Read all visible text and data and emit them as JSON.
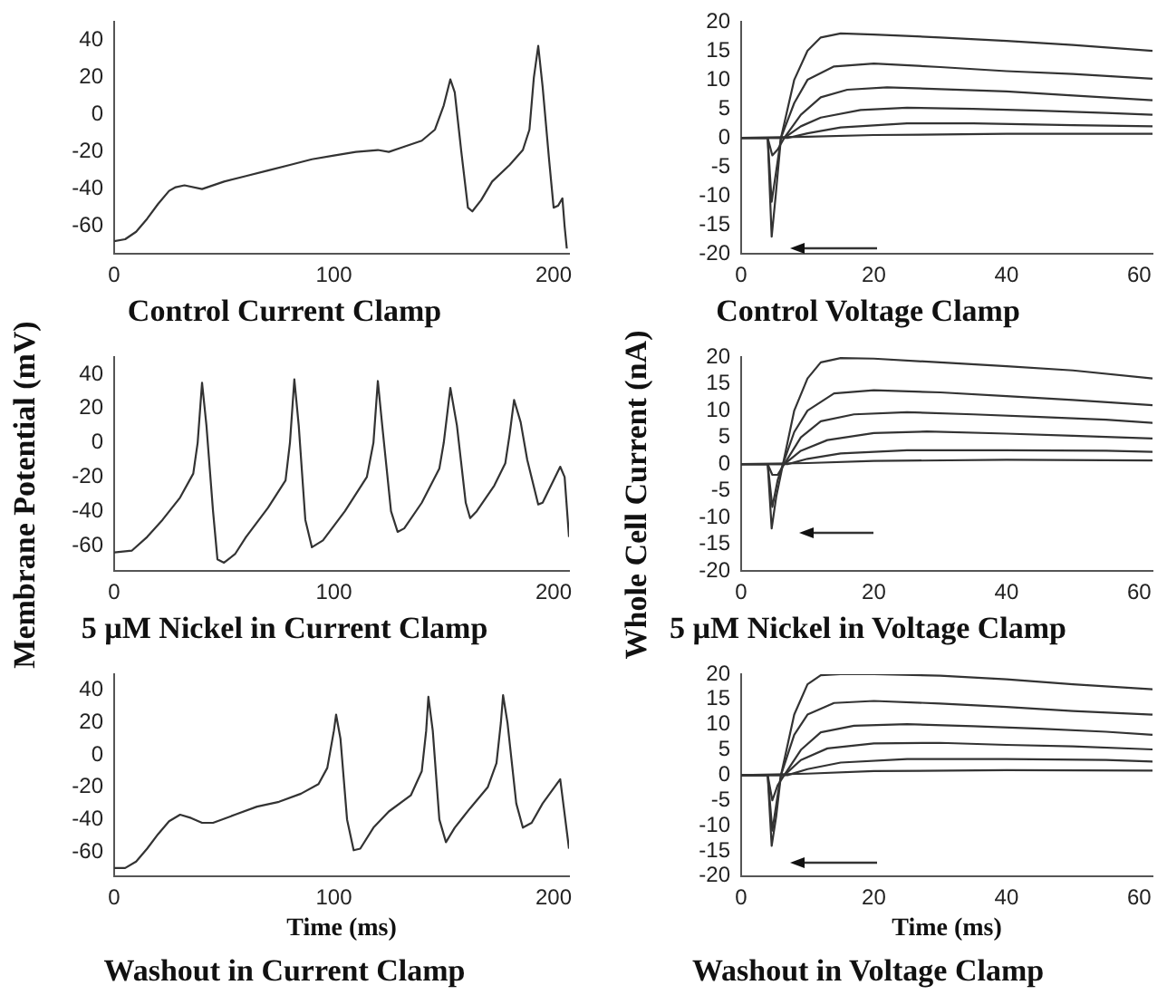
{
  "chart_data": [
    {
      "type": "line",
      "title": "Control Current Clamp",
      "xlim": [
        0,
        207
      ],
      "xticks": [
        0,
        100,
        200
      ],
      "ylim": [
        -75,
        50
      ],
      "yticks": [
        -60,
        -40,
        -20,
        0,
        20,
        40
      ],
      "series": [
        {
          "color": "#333333",
          "x": [
            0,
            5,
            10,
            15,
            20,
            25,
            28,
            32,
            40,
            50,
            60,
            70,
            80,
            90,
            100,
            110,
            120,
            125,
            130,
            140,
            146,
            150,
            153,
            155,
            158,
            161,
            163,
            167,
            172,
            180,
            186,
            189,
            191,
            193,
            195,
            198,
            200,
            202,
            204,
            205,
            206
          ],
          "values": [
            -68,
            -67,
            -63,
            -56,
            -48,
            -41,
            -39,
            -38,
            -40,
            -36,
            -33,
            -30,
            -27,
            -24,
            -22,
            -20,
            -19,
            -20,
            -18,
            -14,
            -8,
            5,
            19,
            12,
            -20,
            -50,
            -52,
            -46,
            -36,
            -27,
            -19,
            -8,
            20,
            37,
            15,
            -25,
            -50,
            -49,
            -45,
            -60,
            -72
          ]
        }
      ]
    },
    {
      "type": "line",
      "title": "Control Voltage Clamp",
      "xlim": [
        0,
        62
      ],
      "xticks": [
        0,
        20,
        40,
        60
      ],
      "ylim": [
        -20,
        20
      ],
      "yticks": [
        -20,
        -15,
        -10,
        -5,
        0,
        5,
        10,
        15,
        20
      ],
      "series": [
        {
          "color": "#333333",
          "x": [
            0,
            4,
            4.6,
            5.2,
            6,
            8,
            10,
            12,
            15,
            20,
            30,
            40,
            50,
            62
          ],
          "values": [
            0,
            0,
            -17,
            -10,
            0,
            10,
            15,
            17.3,
            18,
            17.8,
            17.3,
            16.7,
            16,
            15
          ]
        },
        {
          "color": "#333333",
          "x": [
            0,
            4,
            4.6,
            5.5,
            6,
            8,
            10,
            14,
            20,
            30,
            40,
            50,
            62
          ],
          "values": [
            0,
            0,
            -11,
            -4,
            0,
            6,
            10,
            12.3,
            12.8,
            12.2,
            11.5,
            11,
            10.2
          ]
        },
        {
          "color": "#333333",
          "x": [
            0,
            4,
            4.7,
            5.5,
            6.5,
            9,
            12,
            16,
            22,
            30,
            40,
            50,
            62
          ],
          "values": [
            0,
            0,
            -3,
            -2,
            0,
            4,
            7,
            8.3,
            8.7,
            8.4,
            8,
            7.3,
            6.5
          ]
        },
        {
          "color": "#333333",
          "x": [
            0,
            4,
            6.5,
            9,
            12,
            18,
            25,
            35,
            45,
            55,
            62
          ],
          "values": [
            0,
            0,
            0,
            2,
            3.5,
            4.8,
            5.2,
            5,
            4.7,
            4.3,
            4
          ]
        },
        {
          "color": "#333333",
          "x": [
            0,
            7,
            10,
            15,
            25,
            35,
            50,
            62
          ],
          "values": [
            0,
            0,
            0.8,
            1.8,
            2.5,
            2.5,
            2.2,
            2
          ]
        },
        {
          "color": "#333333",
          "x": [
            0,
            10,
            20,
            40,
            62
          ],
          "values": [
            0,
            0.2,
            0.5,
            0.7,
            0.7
          ]
        }
      ]
    },
    {
      "type": "line",
      "title": "5 µM Nickel in Current Clamp",
      "ylabel": "Membrane Potential (mV)",
      "xlim": [
        0,
        207
      ],
      "xticks": [
        0,
        100,
        200
      ],
      "ylim": [
        -75,
        50
      ],
      "yticks": [
        -60,
        -40,
        -20,
        0,
        20,
        40
      ],
      "series": [
        {
          "color": "#333333",
          "x": [
            0,
            8,
            15,
            22,
            30,
            36,
            38,
            40,
            42,
            45,
            47,
            50,
            55,
            60,
            70,
            78,
            80,
            82,
            84,
            87,
            90,
            95,
            105,
            115,
            118,
            120,
            122,
            126,
            129,
            132,
            140,
            148,
            150,
            153,
            156,
            160,
            162,
            165,
            173,
            178,
            180,
            182,
            185,
            188,
            193,
            195,
            203,
            205,
            207
          ],
          "values": [
            -64,
            -63,
            -55,
            -45,
            -32,
            -18,
            0,
            35,
            10,
            -40,
            -68,
            -70,
            -65,
            -55,
            -38,
            -22,
            0,
            37,
            10,
            -45,
            -61,
            -57,
            -40,
            -20,
            0,
            36,
            10,
            -40,
            -52,
            -50,
            -35,
            -15,
            0,
            32,
            10,
            -35,
            -44,
            -40,
            -25,
            -12,
            5,
            25,
            12,
            -10,
            -36,
            -35,
            -14,
            -20,
            -55
          ]
        }
      ]
    },
    {
      "type": "line",
      "title": "5 µM Nickel in Voltage Clamp",
      "ylabel": "Whole Cell Current (nA)",
      "xlim": [
        0,
        62
      ],
      "xticks": [
        0,
        20,
        40,
        60
      ],
      "ylim": [
        -20,
        20
      ],
      "yticks": [
        -20,
        -15,
        -10,
        -5,
        0,
        5,
        10,
        15,
        20
      ],
      "series": [
        {
          "color": "#333333",
          "x": [
            0,
            4,
            4.6,
            5.3,
            6.3,
            8,
            10,
            12,
            15,
            20,
            30,
            40,
            50,
            62
          ],
          "values": [
            0,
            0,
            -12,
            -6,
            0,
            10,
            16,
            19,
            19.8,
            19.7,
            19,
            18.3,
            17.5,
            16
          ]
        },
        {
          "color": "#333333",
          "x": [
            0,
            4,
            4.7,
            5.5,
            6.3,
            8,
            10,
            14,
            20,
            30,
            40,
            50,
            62
          ],
          "values": [
            0,
            0,
            -8,
            -3,
            0,
            6,
            10,
            13.2,
            13.8,
            13.4,
            12.7,
            12,
            11
          ]
        },
        {
          "color": "#333333",
          "x": [
            0,
            4,
            4.7,
            5.5,
            6.5,
            9,
            12,
            17,
            25,
            35,
            45,
            55,
            62
          ],
          "values": [
            0,
            0,
            -2,
            -2,
            0,
            5,
            8,
            9.3,
            9.7,
            9.3,
            8.8,
            8.3,
            7.7
          ]
        },
        {
          "color": "#333333",
          "x": [
            0,
            6.5,
            9,
            13,
            20,
            28,
            40,
            50,
            62
          ],
          "values": [
            0,
            0,
            2.5,
            4.5,
            5.8,
            6.1,
            5.7,
            5.3,
            4.8
          ]
        },
        {
          "color": "#333333",
          "x": [
            0,
            7,
            10,
            15,
            25,
            40,
            55,
            62
          ],
          "values": [
            0,
            0,
            1,
            2,
            2.6,
            2.6,
            2.5,
            2.3
          ]
        },
        {
          "color": "#333333",
          "x": [
            0,
            10,
            20,
            40,
            62
          ],
          "values": [
            0,
            0.2,
            0.6,
            0.8,
            0.7
          ]
        }
      ]
    },
    {
      "type": "line",
      "title": "Washout in Current Clamp",
      "xlabel": "Time (ms)",
      "xlim": [
        0,
        207
      ],
      "xticks": [
        0,
        100,
        200
      ],
      "ylim": [
        -75,
        50
      ],
      "yticks": [
        -60,
        -40,
        -20,
        0,
        20,
        40
      ],
      "series": [
        {
          "color": "#333333",
          "x": [
            0,
            5,
            10,
            15,
            20,
            25,
            30,
            35,
            40,
            45,
            55,
            65,
            75,
            85,
            93,
            97,
            100,
            101,
            103,
            106,
            109,
            112,
            118,
            125,
            135,
            140,
            142,
            143,
            145,
            148,
            151,
            155,
            162,
            170,
            174,
            176,
            177,
            179,
            183,
            186,
            190,
            195,
            203,
            207
          ],
          "values": [
            -70,
            -70,
            -66,
            -58,
            -49,
            -41,
            -37,
            -39,
            -42,
            -42,
            -37,
            -32,
            -29,
            -24,
            -18,
            -8,
            15,
            25,
            10,
            -40,
            -59,
            -58,
            -45,
            -35,
            -25,
            -10,
            15,
            36,
            15,
            -40,
            -54,
            -45,
            -33,
            -20,
            -5,
            20,
            37,
            20,
            -30,
            -45,
            -42,
            -30,
            -15,
            -58
          ]
        }
      ]
    },
    {
      "type": "line",
      "title": "Washout in Voltage Clamp",
      "xlabel": "Time (ms)",
      "xlim": [
        0,
        62
      ],
      "xticks": [
        0,
        20,
        40,
        60
      ],
      "ylim": [
        -20,
        20
      ],
      "yticks": [
        -20,
        -15,
        -10,
        -5,
        0,
        5,
        10,
        15,
        20
      ],
      "series": [
        {
          "color": "#333333",
          "x": [
            0,
            4,
            4.6,
            5.3,
            6,
            8,
            10,
            12,
            15,
            20,
            30,
            40,
            50,
            62
          ],
          "values": [
            0,
            0,
            -14,
            -8,
            0,
            12,
            18,
            19.8,
            20,
            20,
            19.7,
            19,
            18,
            17
          ]
        },
        {
          "color": "#333333",
          "x": [
            0,
            4,
            4.7,
            5.5,
            6,
            8,
            10,
            14,
            20,
            30,
            40,
            50,
            62
          ],
          "values": [
            0,
            0,
            -11,
            -4,
            0,
            8,
            12,
            14.3,
            14.7,
            14.2,
            13.5,
            12.7,
            12
          ]
        },
        {
          "color": "#333333",
          "x": [
            0,
            4,
            4.7,
            5.5,
            6.5,
            9,
            12,
            17,
            25,
            35,
            45,
            55,
            62
          ],
          "values": [
            0,
            0,
            -5,
            -2,
            0,
            5,
            8.5,
            9.8,
            10.1,
            9.7,
            9.2,
            8.6,
            8
          ]
        },
        {
          "color": "#333333",
          "x": [
            0,
            6.5,
            9,
            13,
            20,
            30,
            40,
            50,
            62
          ],
          "values": [
            0,
            0,
            3,
            5.3,
            6.3,
            6.4,
            6,
            5.7,
            5.1
          ]
        },
        {
          "color": "#333333",
          "x": [
            0,
            7,
            10,
            15,
            25,
            40,
            55,
            62
          ],
          "values": [
            0,
            0,
            1.2,
            2.5,
            3.2,
            3.2,
            3,
            2.7
          ]
        },
        {
          "color": "#333333",
          "x": [
            0,
            10,
            20,
            40,
            62
          ],
          "values": [
            0,
            0.3,
            0.8,
            1,
            0.9
          ]
        }
      ]
    }
  ]
}
